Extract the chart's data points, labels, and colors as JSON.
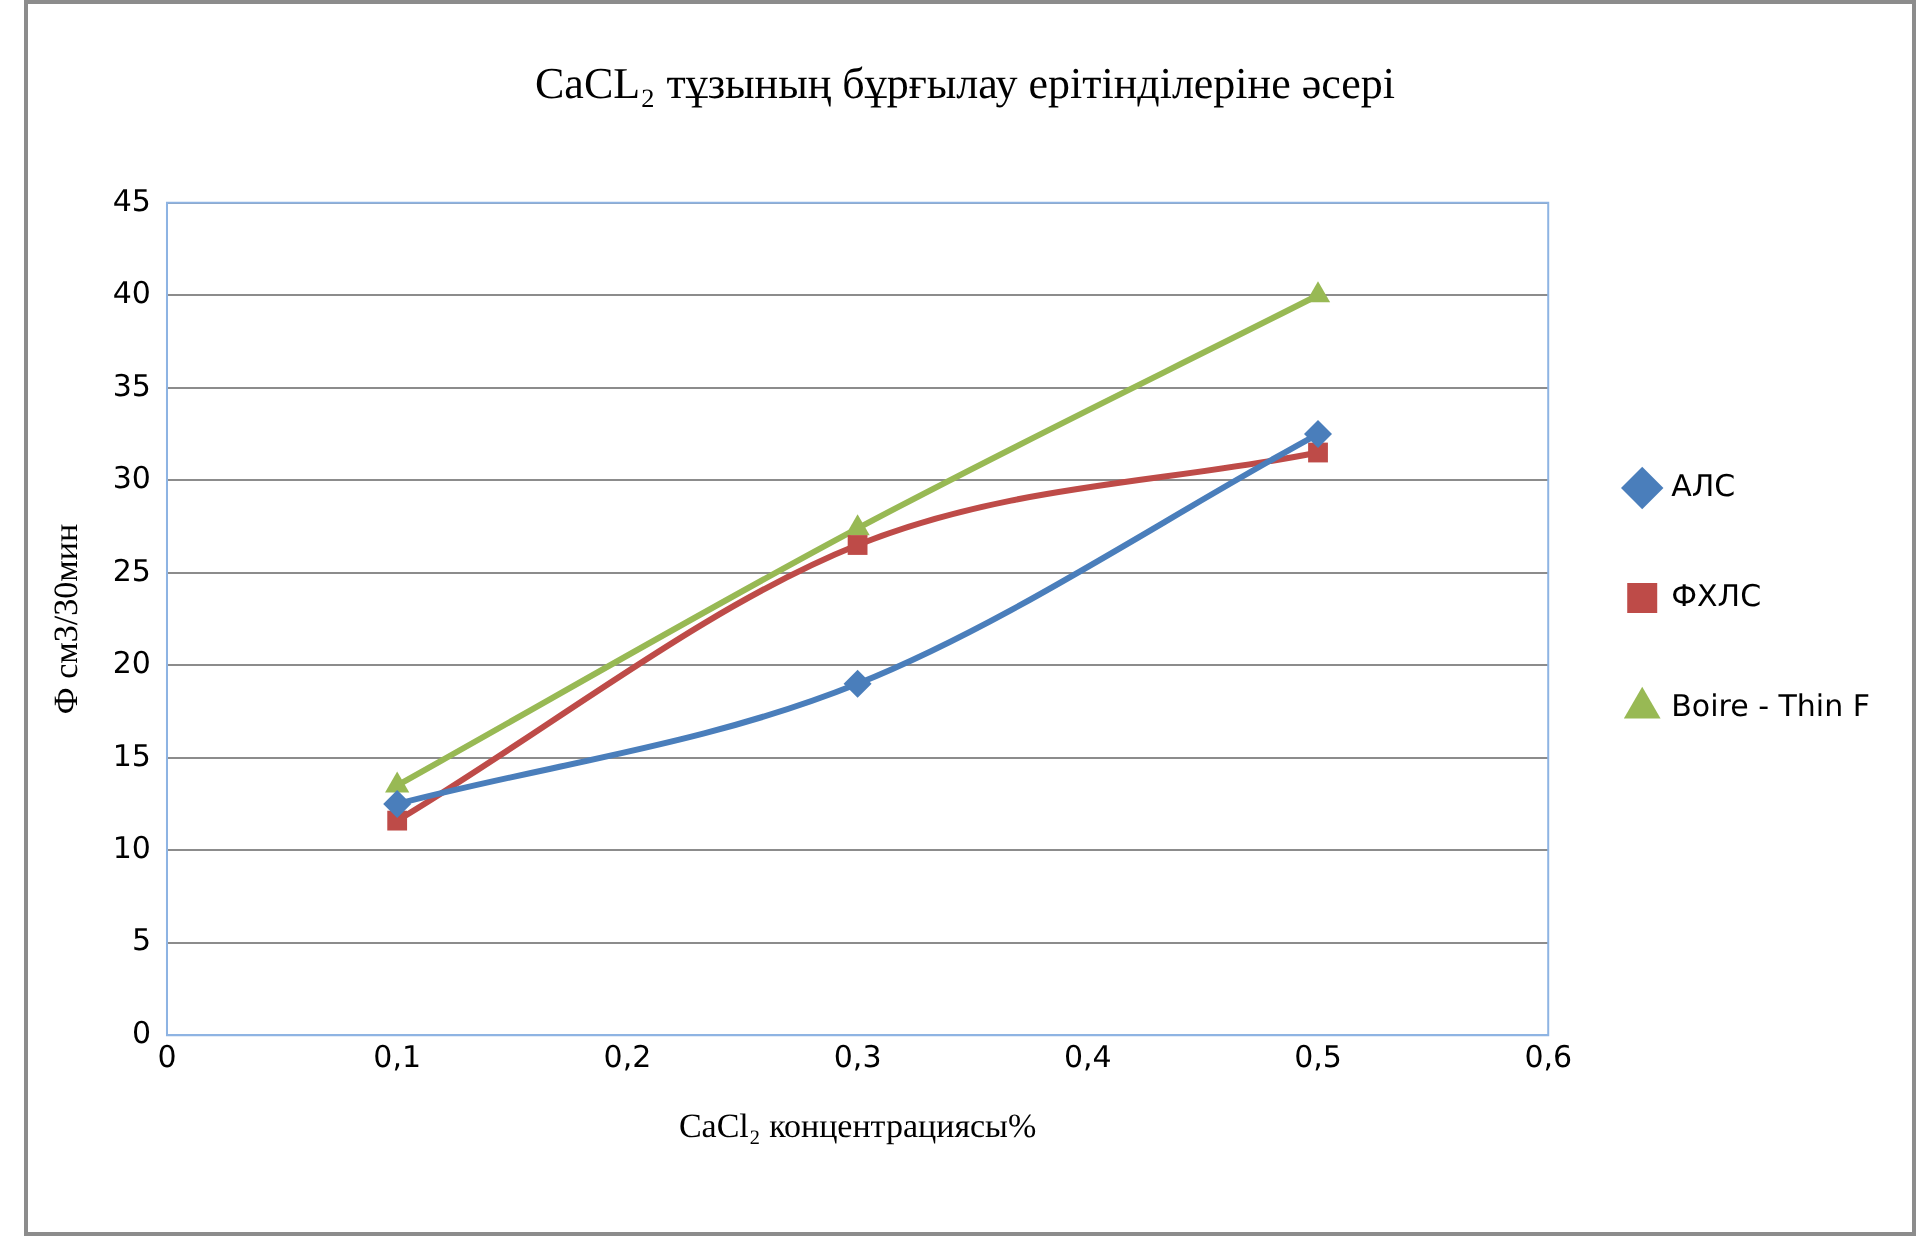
{
  "chart_data": {
    "type": "line",
    "title": "CaCL₂ тұзының бұрғылау ерітінділеріне әсері",
    "xlabel": "CaCl₂ концентрациясы%",
    "ylabel": "Ф см3/30мин",
    "x": [
      0.1,
      0.3,
      0.5
    ],
    "series": [
      {
        "name": "АЛС",
        "color": "#4a7ebb",
        "marker": "diamond",
        "values": [
          12.5,
          19,
          32.5
        ]
      },
      {
        "name": "ФХЛС",
        "color": "#be4b48",
        "marker": "square",
        "values": [
          11.6,
          26.5,
          31.5
        ]
      },
      {
        "name": "Boire - Thin F",
        "color": "#98b954",
        "marker": "triangle",
        "values": [
          13.5,
          27.4,
          40
        ]
      }
    ],
    "xlim": [
      0,
      0.6
    ],
    "xticks": [
      {
        "value": 0,
        "label": "0"
      },
      {
        "value": 0.1,
        "label": "0,1"
      },
      {
        "value": 0.2,
        "label": "0,2"
      },
      {
        "value": 0.3,
        "label": "0,3"
      },
      {
        "value": 0.4,
        "label": "0,4"
      },
      {
        "value": 0.5,
        "label": "0,5"
      },
      {
        "value": 0.6,
        "label": "0,6"
      }
    ],
    "ylim": [
      0,
      45
    ],
    "yticks": [
      0,
      5,
      10,
      15,
      20,
      25,
      30,
      35,
      40,
      45
    ],
    "grid": "y",
    "legend": "right",
    "line_style": "solid"
  }
}
